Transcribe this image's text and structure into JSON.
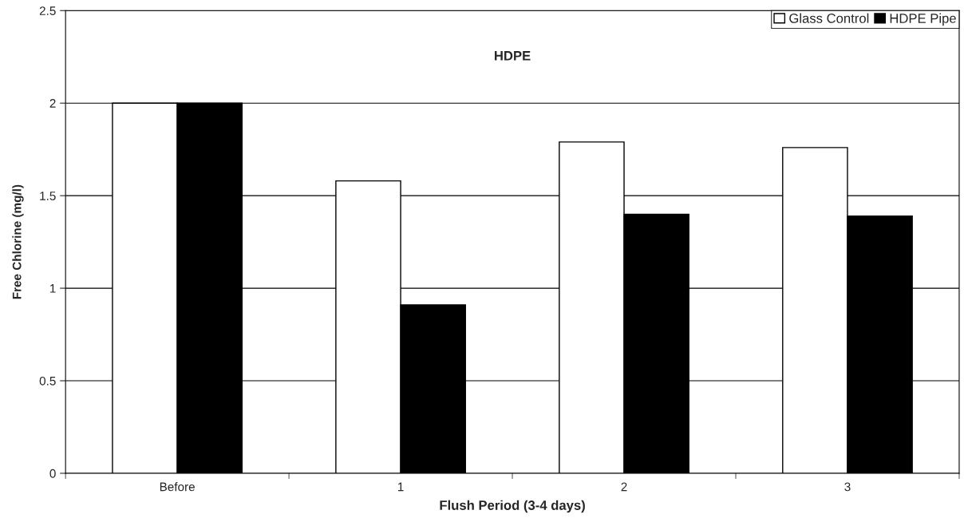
{
  "chart_data": {
    "type": "bar",
    "title": "HDPE",
    "xlabel": "Flush Period (3-4 days)",
    "ylabel": "Free Chlorine (mg/l)",
    "categories": [
      "Before",
      "1",
      "2",
      "3"
    ],
    "series": [
      {
        "name": "Glass Control",
        "color": "#ffffff",
        "values": [
          2.0,
          1.58,
          1.79,
          1.76
        ]
      },
      {
        "name": "HDPE Pipe",
        "color": "#000000",
        "values": [
          2.0,
          0.91,
          1.4,
          1.39
        ]
      }
    ],
    "ylim": [
      0,
      2.5
    ],
    "yticks": [
      0,
      0.5,
      1,
      1.5,
      2,
      2.5
    ],
    "grid": "y",
    "legend": "top right"
  }
}
